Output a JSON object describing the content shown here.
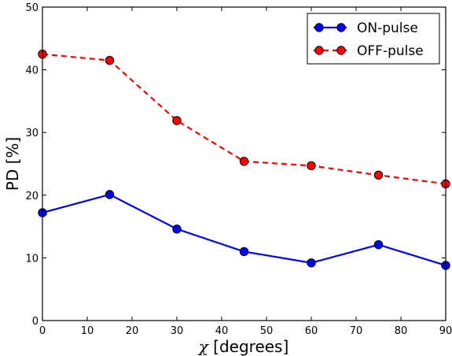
{
  "chart_data": {
    "type": "line",
    "xlabel_var": "χ",
    "xlabel_rest": " [degrees]",
    "ylabel": "PD [%]",
    "xlim": [
      0,
      90
    ],
    "ylim": [
      0,
      50
    ],
    "x_ticks": [
      0,
      10,
      20,
      30,
      40,
      50,
      60,
      70,
      80,
      90
    ],
    "y_ticks": [
      0,
      10,
      20,
      30,
      40,
      50
    ],
    "grid": false,
    "legend_position": "top-right",
    "x": [
      0,
      15,
      30,
      45,
      60,
      75,
      90
    ],
    "series": [
      {
        "name": "ON-pulse",
        "values": [
          17.2,
          20.1,
          14.6,
          11.0,
          9.2,
          12.1,
          8.8
        ],
        "color": "#0000ff",
        "line_style": "solid",
        "marker": "circle"
      },
      {
        "name": "OFF-pulse",
        "values": [
          42.5,
          41.5,
          31.9,
          25.4,
          24.7,
          23.2,
          21.8
        ],
        "color": "#ff0000",
        "line_style": "dashed",
        "marker": "circle"
      }
    ]
  }
}
